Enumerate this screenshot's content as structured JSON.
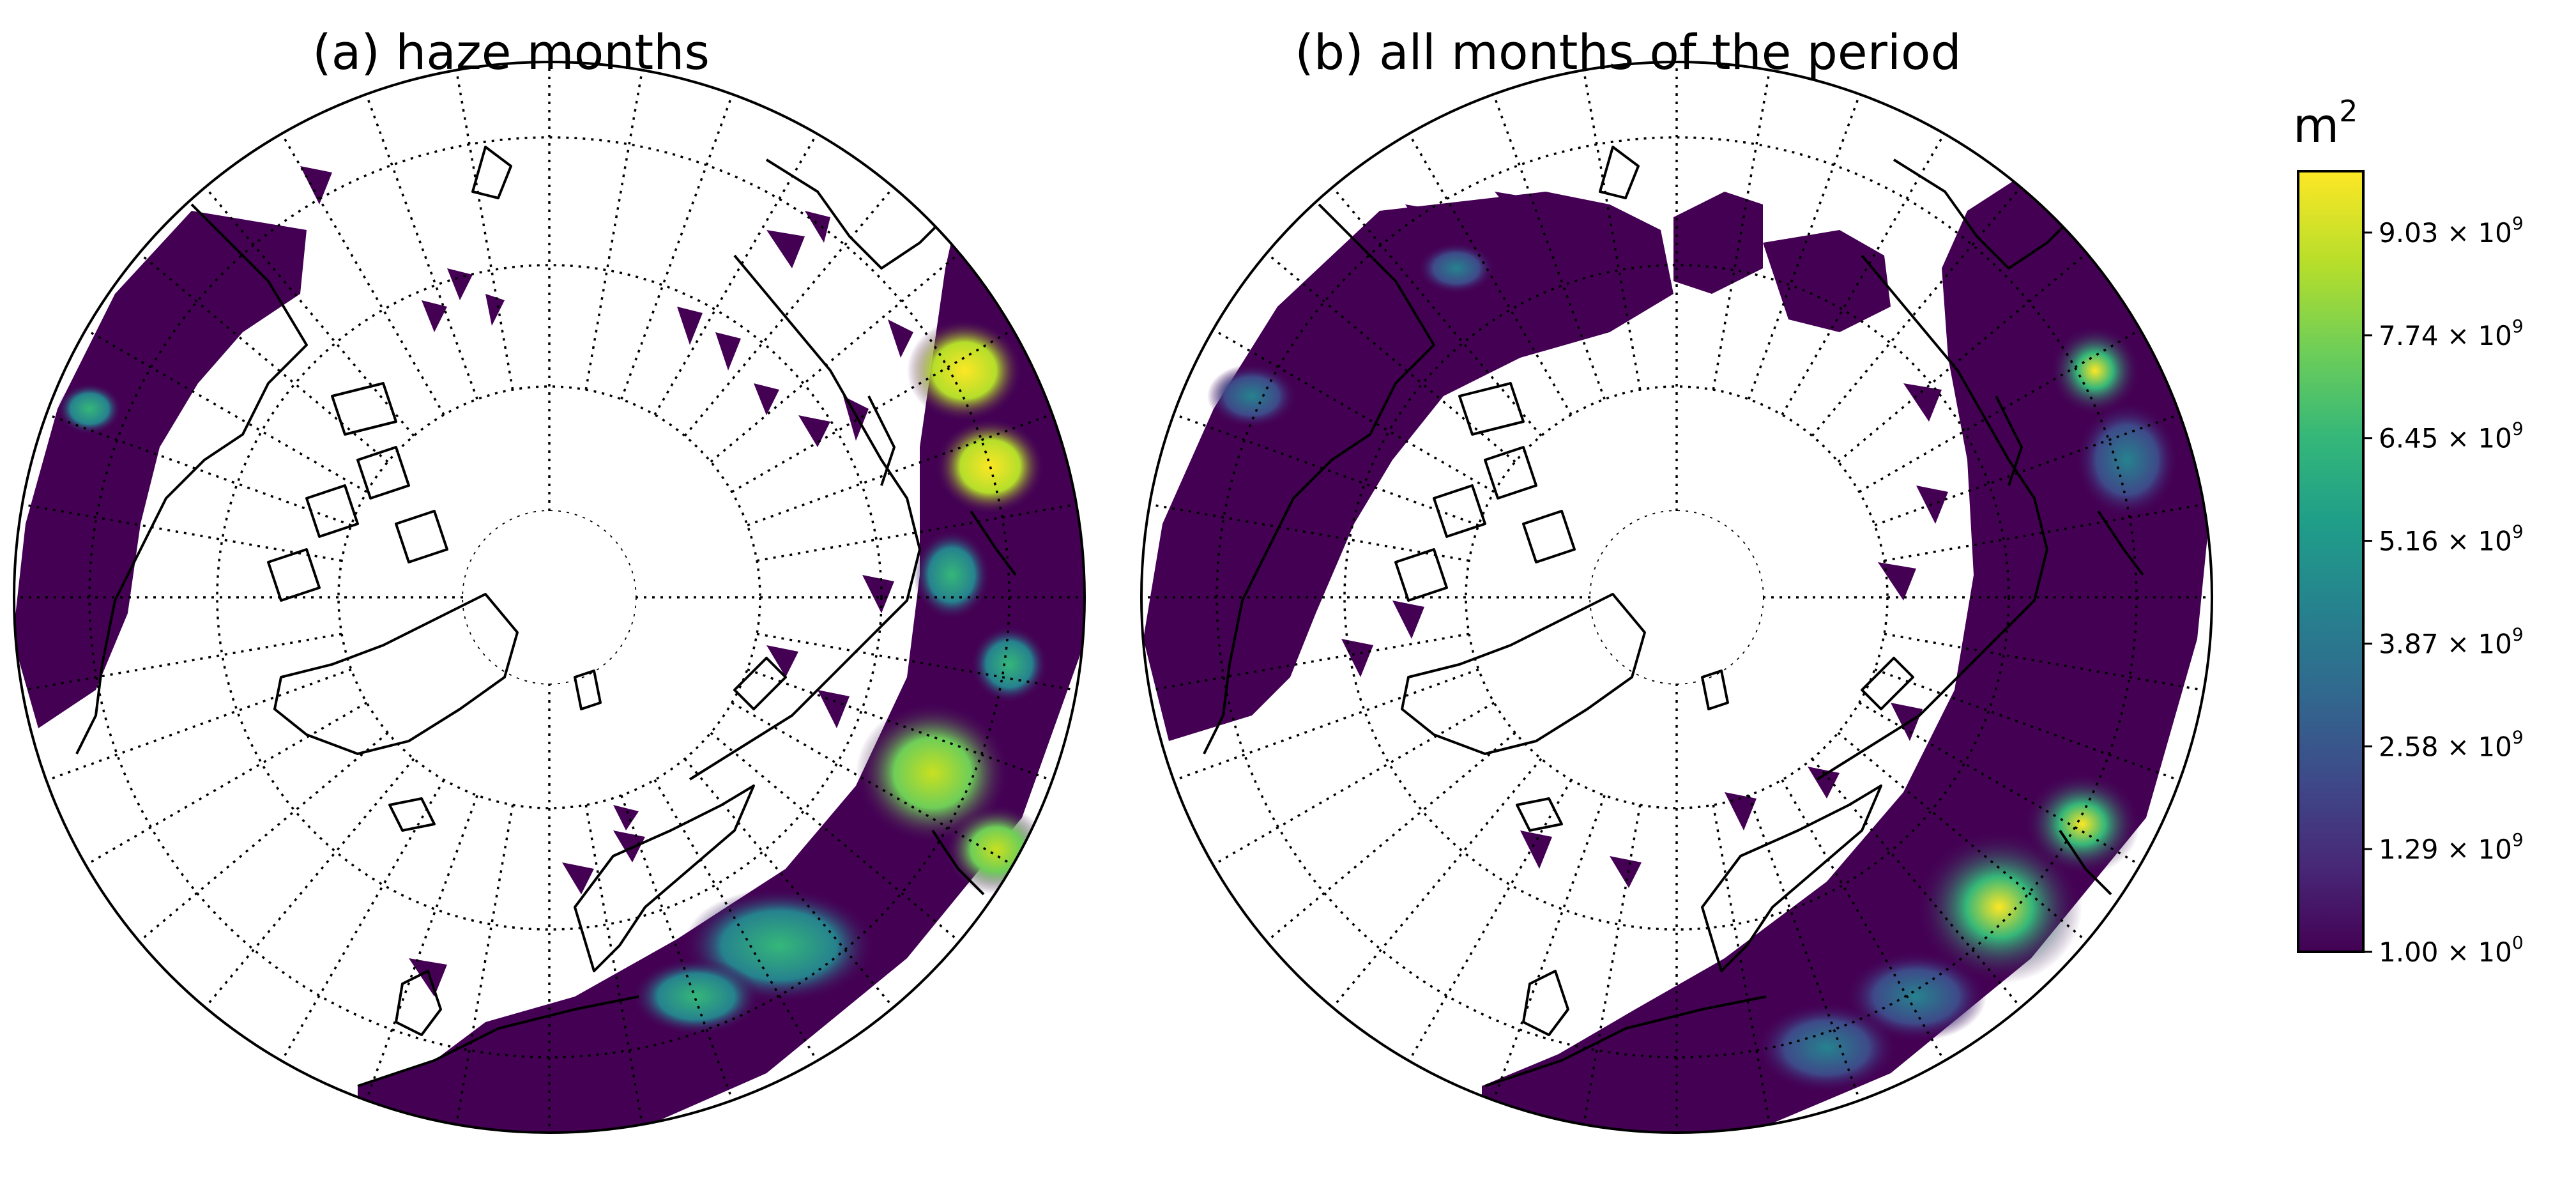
{
  "figure": {
    "panels": [
      {
        "id": "a",
        "title": "(a) haze months"
      },
      {
        "id": "b",
        "title": "(b) all months of the period"
      }
    ]
  },
  "colorbar": {
    "unit_base": "m",
    "unit_exponent": "2",
    "colormap": "viridis",
    "colors": [
      "#440154",
      "#482878",
      "#3e4a89",
      "#31688e",
      "#26828e",
      "#1f9e89",
      "#35b779",
      "#6ece58",
      "#b5de2b",
      "#fde725"
    ],
    "ticks": [
      {
        "value": 1.0,
        "mantissa": "1.00",
        "exponent": "0"
      },
      {
        "value": 1290000000,
        "mantissa": "1.29",
        "exponent": "9"
      },
      {
        "value": 2580000000,
        "mantissa": "2.58",
        "exponent": "9"
      },
      {
        "value": 3870000000,
        "mantissa": "3.87",
        "exponent": "9"
      },
      {
        "value": 5160000000,
        "mantissa": "5.16",
        "exponent": "9"
      },
      {
        "value": 6450000000,
        "mantissa": "6.45",
        "exponent": "9"
      },
      {
        "value": 7740000000,
        "mantissa": "7.74",
        "exponent": "9"
      },
      {
        "value": 9030000000,
        "mantissa": "9.03",
        "exponent": "9"
      }
    ],
    "range": [
      1.0,
      9800000000
    ]
  }
}
